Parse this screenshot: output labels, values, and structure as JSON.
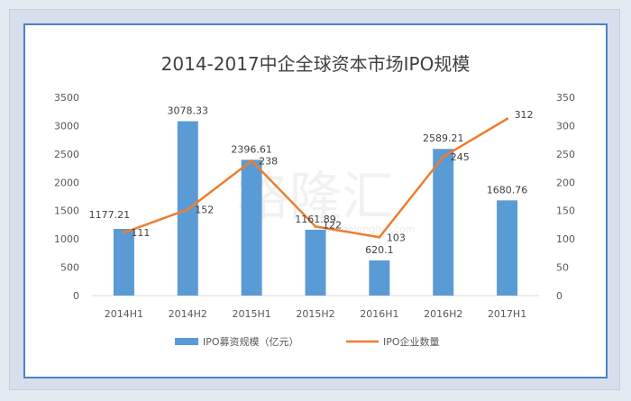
{
  "watermark": {
    "name": "格隆汇",
    "url": "www.gelonghui.com"
  },
  "chart_data": {
    "type": "bar",
    "title": "2014-2017中企全球资本市场IPO规模",
    "categories": [
      "2014H1",
      "2014H2",
      "2015H1",
      "2015H2",
      "2016H1",
      "2016H2",
      "2017H1"
    ],
    "series": [
      {
        "name": "IPO募资规模（亿元）",
        "type": "bar",
        "axis": "left",
        "color": "#5b9bd5",
        "values": [
          1177.21,
          3078.33,
          2396.61,
          1161.89,
          620.1,
          2589.21,
          1680.76
        ],
        "value_labels": [
          "1177.21",
          "3078.33",
          "2396.61",
          "1161.89",
          "620.1",
          "2589.21",
          "1680.76"
        ]
      },
      {
        "name": "IPO企业数量",
        "type": "line",
        "axis": "right",
        "color": "#ed7d31",
        "values": [
          111,
          152,
          238,
          122,
          103,
          245,
          312
        ],
        "value_labels": [
          "111",
          "152",
          "238",
          "122",
          "103",
          "245",
          "312"
        ]
      }
    ],
    "y_left": {
      "min": 0,
      "max": 3500,
      "ticks": [
        "0",
        "500",
        "1000",
        "1500",
        "2000",
        "2500",
        "3000",
        "3500"
      ]
    },
    "y_right": {
      "min": 0,
      "max": 350,
      "ticks": [
        "0",
        "50",
        "100",
        "150",
        "200",
        "250",
        "300",
        "350"
      ]
    },
    "grid": false,
    "legend": "bottom"
  }
}
